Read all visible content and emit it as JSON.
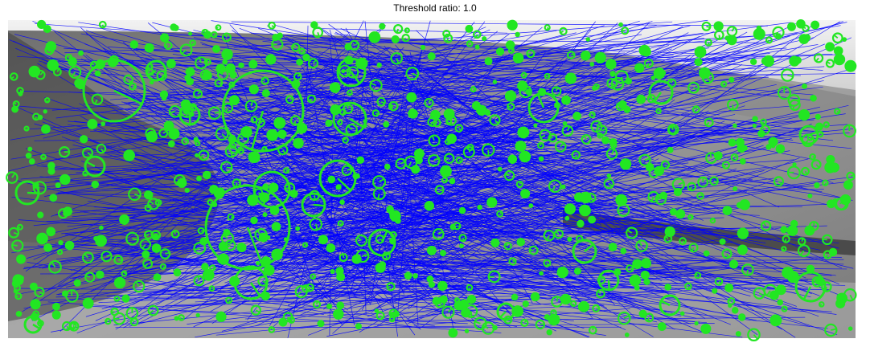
{
  "figure": {
    "title": "Threshold ratio: 1.0"
  },
  "colors": {
    "background": "#ffffff",
    "match_line": "#0000ff",
    "feature": "#22e622",
    "photo_dark": "#4a4a4a",
    "photo_mid": "#8c8c8c",
    "photo_light": "#d8d8d8"
  }
}
